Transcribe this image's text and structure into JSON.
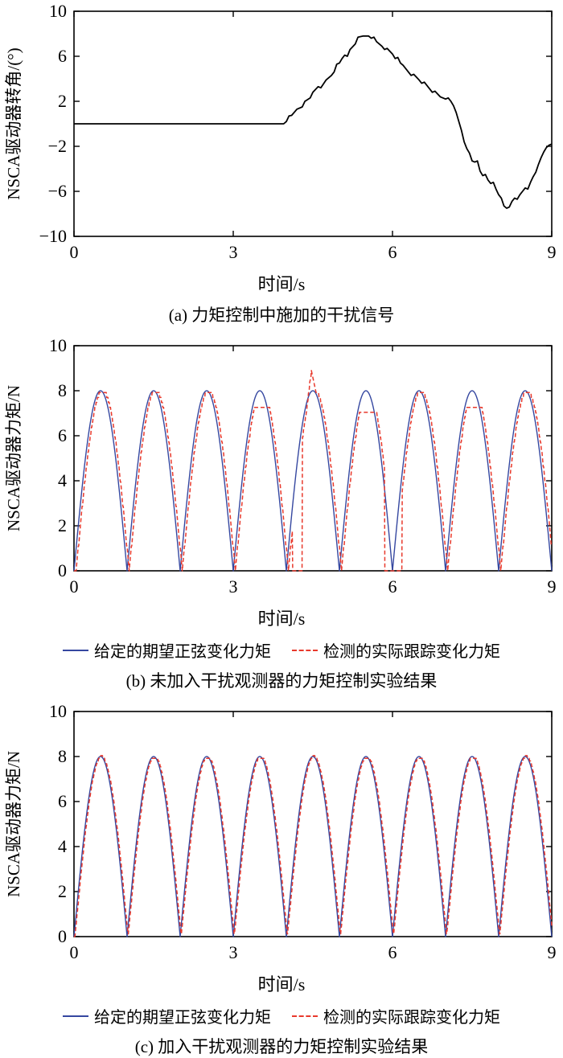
{
  "page": {
    "background": "#ffffff"
  },
  "colors": {
    "axis": "#000000",
    "desired_line": "#3547a0",
    "actual_line": "#e8392c",
    "disturbance_line": "#000000"
  },
  "chart_data": [
    {
      "id": "a",
      "type": "line",
      "title": "(a) 力矩控制中施加的干扰信号",
      "xlabel": "时间/s",
      "ylabel": "NSCA驱动器转角/(°)",
      "xlim": [
        0,
        9
      ],
      "ylim": [
        -10,
        10
      ],
      "xticks": [
        0,
        3,
        6,
        9
      ],
      "yticks": [
        -10,
        -6,
        -2,
        2,
        6,
        10
      ],
      "grid": false,
      "series": [
        {
          "name": "干扰信号",
          "color": "#000000",
          "style": "solid",
          "width": 1.8,
          "points": [
            [
              0,
              0
            ],
            [
              3.95,
              0
            ],
            [
              4.0,
              0.2
            ],
            [
              4.05,
              0.7
            ],
            [
              4.1,
              0.75
            ],
            [
              4.2,
              1.3
            ],
            [
              4.3,
              1.5
            ],
            [
              4.35,
              2.0
            ],
            [
              4.45,
              2.3
            ],
            [
              4.5,
              2.8
            ],
            [
              4.6,
              3.3
            ],
            [
              4.65,
              3.2
            ],
            [
              4.75,
              3.9
            ],
            [
              4.85,
              4.3
            ],
            [
              4.9,
              4.6
            ],
            [
              4.95,
              5.3
            ],
            [
              5.0,
              5.4
            ],
            [
              5.05,
              5.8
            ],
            [
              5.1,
              6.1
            ],
            [
              5.15,
              6.0
            ],
            [
              5.2,
              6.6
            ],
            [
              5.3,
              7.1
            ],
            [
              5.35,
              7.7
            ],
            [
              5.45,
              7.8
            ],
            [
              5.55,
              7.8
            ],
            [
              5.6,
              7.6
            ],
            [
              5.65,
              7.7
            ],
            [
              5.7,
              7.3
            ],
            [
              5.8,
              6.9
            ],
            [
              5.85,
              6.6
            ],
            [
              5.9,
              6.7
            ],
            [
              6.0,
              6.2
            ],
            [
              6.05,
              5.8
            ],
            [
              6.1,
              5.9
            ],
            [
              6.15,
              5.4
            ],
            [
              6.2,
              5.2
            ],
            [
              6.3,
              4.6
            ],
            [
              6.35,
              4.3
            ],
            [
              6.4,
              4.4
            ],
            [
              6.5,
              3.9
            ],
            [
              6.55,
              3.6
            ],
            [
              6.6,
              3.7
            ],
            [
              6.7,
              3.1
            ],
            [
              6.75,
              2.8
            ],
            [
              6.8,
              2.9
            ],
            [
              6.9,
              2.4
            ],
            [
              7.0,
              2.2
            ],
            [
              7.05,
              2.3
            ],
            [
              7.1,
              2.0
            ],
            [
              7.15,
              1.6
            ],
            [
              7.2,
              1.0
            ],
            [
              7.25,
              0.2
            ],
            [
              7.3,
              -0.6
            ],
            [
              7.35,
              -1.6
            ],
            [
              7.4,
              -2.2
            ],
            [
              7.45,
              -2.6
            ],
            [
              7.5,
              -3.3
            ],
            [
              7.55,
              -3.4
            ],
            [
              7.6,
              -3.3
            ],
            [
              7.65,
              -4.2
            ],
            [
              7.7,
              -4.6
            ],
            [
              7.75,
              -4.5
            ],
            [
              7.8,
              -5.0
            ],
            [
              7.85,
              -5.3
            ],
            [
              7.9,
              -5.2
            ],
            [
              7.95,
              -5.8
            ],
            [
              8.0,
              -6.3
            ],
            [
              8.05,
              -6.6
            ],
            [
              8.1,
              -7.3
            ],
            [
              8.15,
              -7.5
            ],
            [
              8.2,
              -7.4
            ],
            [
              8.25,
              -6.9
            ],
            [
              8.3,
              -6.6
            ],
            [
              8.35,
              -6.7
            ],
            [
              8.4,
              -6.3
            ],
            [
              8.45,
              -6.0
            ],
            [
              8.5,
              -5.7
            ],
            [
              8.55,
              -5.8
            ],
            [
              8.6,
              -5.2
            ],
            [
              8.65,
              -4.7
            ],
            [
              8.7,
              -4.3
            ],
            [
              8.75,
              -3.6
            ],
            [
              8.8,
              -3.0
            ],
            [
              8.85,
              -2.5
            ],
            [
              8.9,
              -2.1
            ],
            [
              8.95,
              -1.9
            ],
            [
              9.0,
              -1.8
            ]
          ]
        }
      ]
    },
    {
      "id": "b",
      "type": "line",
      "title": "(b) 未加入干扰观测器的力矩控制实验结果",
      "xlabel": "时间/s",
      "ylabel": "NSCA驱动器力矩/N",
      "xlim": [
        0,
        9
      ],
      "ylim": [
        0,
        10
      ],
      "xticks": [
        0,
        3,
        6,
        9
      ],
      "yticks": [
        0,
        2,
        4,
        6,
        8,
        10
      ],
      "grid": false,
      "legend": [
        {
          "label": "给定的期望正弦变化力矩",
          "color": "#3547a0",
          "style": "solid"
        },
        {
          "label": "检测的实际跟踪变化力矩",
          "color": "#e8392c",
          "style": "dashed"
        }
      ],
      "series": [
        {
          "name": "给定的期望正弦变化力矩",
          "color": "#3547a0",
          "style": "solid",
          "width": 1.4,
          "generator": {
            "kind": "rectified_sine",
            "amplitude": 8,
            "period": 1
          }
        },
        {
          "name": "检测的实际跟踪变化力矩",
          "color": "#e8392c",
          "style": "dashed",
          "width": 1.5,
          "generator": {
            "kind": "rectified_sine",
            "amplitude": 8,
            "period": 1,
            "lag": 0.04,
            "quantize": 0.22,
            "peak_tops": [
              8.1,
              8.0,
              8.1,
              7.2,
              7.9,
              7.1,
              8.0,
              7.2,
              8.0
            ],
            "spike": {
              "t": 4.47,
              "width": 0.09,
              "height": 1.0
            },
            "zero_holds": [
              [
                4.12,
                4.3
              ],
              [
                5.85,
                6.18
              ]
            ]
          }
        }
      ]
    },
    {
      "id": "c",
      "type": "line",
      "title": "(c) 加入干扰观测器的力矩控制实验结果",
      "xlabel": "时间/s",
      "ylabel": "NSCA驱动器力矩/N",
      "xlim": [
        0,
        9
      ],
      "ylim": [
        0,
        10
      ],
      "xticks": [
        0,
        3,
        6,
        9
      ],
      "yticks": [
        0,
        2,
        4,
        6,
        8,
        10
      ],
      "grid": false,
      "legend": [
        {
          "label": "给定的期望正弦变化力矩",
          "color": "#3547a0",
          "style": "solid"
        },
        {
          "label": "检测的实际跟踪变化力矩",
          "color": "#e8392c",
          "style": "dashed"
        }
      ],
      "series": [
        {
          "name": "给定的期望正弦变化力矩",
          "color": "#3547a0",
          "style": "solid",
          "width": 1.4,
          "generator": {
            "kind": "rectified_sine",
            "amplitude": 8,
            "period": 1
          }
        },
        {
          "name": "检测的实际跟踪变化力矩",
          "color": "#e8392c",
          "style": "dashed",
          "width": 1.5,
          "generator": {
            "kind": "rectified_sine",
            "amplitude": 8,
            "period": 1,
            "lag": 0.02,
            "quantize": 0.12,
            "peak_tops": [
              8.1,
              7.9,
              7.95,
              7.9,
              8.0,
              7.9,
              7.9,
              7.95,
              8.05
            ]
          }
        }
      ]
    }
  ]
}
